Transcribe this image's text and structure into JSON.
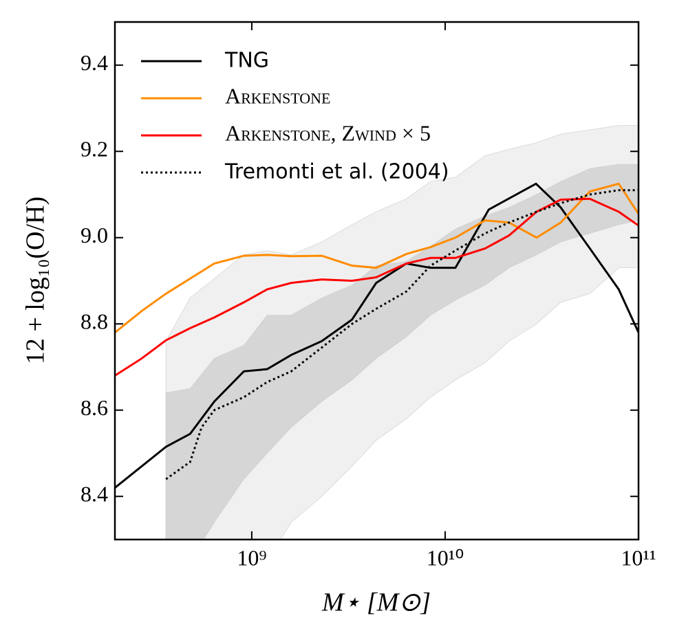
{
  "chart_data": {
    "type": "line",
    "xlabel": "M⋆ [M⊙]",
    "ylabel": "12 + log₁₀(O/H)",
    "xscale": "log",
    "xlim": [
      196000000.0,
      100000000000.0
    ],
    "ylim": [
      8.3,
      9.5
    ],
    "xticks": [
      {
        "value": 1000000000.0,
        "label": "10⁹"
      },
      {
        "value": 10000000000.0,
        "label": "10¹⁰"
      },
      {
        "value": 100000000000.0,
        "label": "10¹¹"
      }
    ],
    "yticks": [
      8.4,
      8.6,
      8.8,
      {
        "value": 9,
        "label": "9.0"
      },
      9.2,
      9.4
    ],
    "legend": "upper left",
    "bands": [
      {
        "color": "#f0f0f0",
        "x": [
          360000000.0,
          480000000.0,
          640000000.0,
          910000000.0,
          1200000000.0,
          1600000000.0,
          2300000000.0,
          3300000000.0,
          4400000000.0,
          6300000000.0,
          8400000000.0,
          11300000000.0,
          16100000000.0,
          21400000000.0,
          29700000000.0,
          39600000000.0,
          56000000000.0,
          79000000000.0,
          100000000000.0
        ],
        "upper": [
          8.76,
          8.86,
          8.905,
          8.96,
          8.97,
          8.96,
          8.99,
          9.03,
          9.06,
          9.09,
          9.13,
          9.14,
          9.19,
          9.205,
          9.22,
          9.24,
          9.25,
          9.26,
          9.26
        ],
        "lower": [
          8.2,
          8.2,
          8.2,
          8.2,
          8.25,
          8.34,
          8.4,
          8.47,
          8.53,
          8.58,
          8.63,
          8.67,
          8.71,
          8.76,
          8.8,
          8.85,
          8.87,
          8.93,
          8.93
        ]
      },
      {
        "color": "#d6d6d6",
        "x": [
          360000000.0,
          480000000.0,
          640000000.0,
          910000000.0,
          1200000000.0,
          1600000000.0,
          2300000000.0,
          3300000000.0,
          4400000000.0,
          6300000000.0,
          8400000000.0,
          11300000000.0,
          16100000000.0,
          21400000000.0,
          29700000000.0,
          39600000000.0,
          56000000000.0,
          79000000000.0,
          100000000000.0
        ],
        "upper": [
          8.64,
          8.65,
          8.72,
          8.75,
          8.82,
          8.82,
          8.86,
          8.89,
          8.935,
          8.945,
          8.98,
          9.02,
          9.05,
          9.07,
          9.1,
          9.13,
          9.16,
          9.17,
          9.17
        ],
        "lower": [
          8.2,
          8.25,
          8.34,
          8.44,
          8.5,
          8.56,
          8.62,
          8.67,
          8.72,
          8.77,
          8.82,
          8.855,
          8.89,
          8.93,
          8.96,
          8.99,
          9.01,
          9.03,
          9.04
        ]
      }
    ],
    "series": [
      {
        "name": "TNG",
        "color": "#000000",
        "style": "solid",
        "x": [
          196000000.0,
          360000000.0,
          480000000.0,
          640000000.0,
          910000000.0,
          1200000000.0,
          1600000000.0,
          2300000000.0,
          3300000000.0,
          4400000000.0,
          6300000000.0,
          8400000000.0,
          11300000000.0,
          13100000000.0,
          16800000000.0,
          29500000000.0,
          39600000000.0,
          56000000000.0,
          79000000000.0,
          100000000000.0
        ],
        "values": [
          8.42,
          8.515,
          8.545,
          8.62,
          8.69,
          8.695,
          8.728,
          8.76,
          8.81,
          8.895,
          8.94,
          8.93,
          8.93,
          8.98,
          9.065,
          9.125,
          9.07,
          8.975,
          8.88,
          8.78
        ]
      },
      {
        "name": "Arkenstone",
        "color": "#ff8c00",
        "style": "solid",
        "x": [
          196000000.0,
          270000000.0,
          360000000.0,
          480000000.0,
          640000000.0,
          910000000.0,
          1200000000.0,
          1600000000.0,
          2300000000.0,
          3300000000.0,
          4400000000.0,
          6300000000.0,
          8400000000.0,
          11300000000.0,
          16100000000.0,
          21400000000.0,
          29700000000.0,
          39600000000.0,
          56000000000.0,
          79000000000.0,
          100000000000.0
        ],
        "values": [
          8.78,
          8.83,
          8.87,
          8.905,
          8.94,
          8.958,
          8.96,
          8.957,
          8.958,
          8.935,
          8.93,
          8.962,
          8.978,
          9.0,
          9.04,
          9.035,
          9.0,
          9.035,
          9.107,
          9.125,
          9.055
        ]
      },
      {
        "name": "Arkenstone, Zwind × 5",
        "color": "#ff0000",
        "style": "solid",
        "x": [
          196000000.0,
          270000000.0,
          360000000.0,
          480000000.0,
          640000000.0,
          910000000.0,
          1200000000.0,
          1600000000.0,
          2300000000.0,
          3300000000.0,
          4400000000.0,
          6300000000.0,
          8400000000.0,
          11300000000.0,
          16100000000.0,
          21400000000.0,
          29700000000.0,
          39600000000.0,
          56000000000.0,
          79000000000.0,
          100000000000.0
        ],
        "values": [
          8.68,
          8.72,
          8.762,
          8.79,
          8.815,
          8.85,
          8.88,
          8.895,
          8.903,
          8.9,
          8.908,
          8.94,
          8.953,
          8.953,
          8.975,
          9.005,
          9.06,
          9.088,
          9.09,
          9.06,
          9.028
        ]
      },
      {
        "name": "Tremonti et al. (2004)",
        "color": "#000000",
        "style": "dotted",
        "x": [
          360000000.0,
          480000000.0,
          550000000.0,
          640000000.0,
          910000000.0,
          1200000000.0,
          1600000000.0,
          2300000000.0,
          3300000000.0,
          4400000000.0,
          6300000000.0,
          8400000000.0,
          11300000000.0,
          16100000000.0,
          21400000000.0,
          29700000000.0,
          39600000000.0,
          56000000000.0,
          79000000000.0,
          100000000000.0
        ],
        "values": [
          8.44,
          8.48,
          8.56,
          8.6,
          8.63,
          8.665,
          8.69,
          8.745,
          8.8,
          8.835,
          8.875,
          8.935,
          8.97,
          9.01,
          9.035,
          9.06,
          9.08,
          9.1,
          9.11,
          9.11
        ]
      }
    ]
  }
}
